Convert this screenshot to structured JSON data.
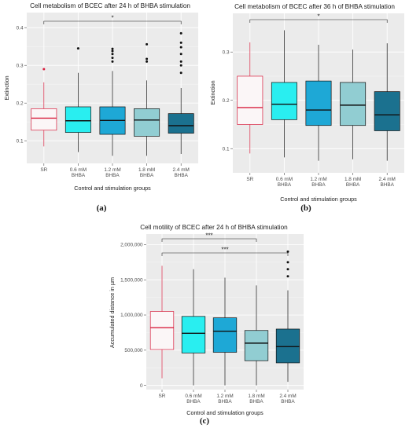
{
  "chart_data": [
    {
      "panel": "(a)",
      "type": "boxplot",
      "title": "Cell metabolism of BCEC after 24 h of BHBA stimulation",
      "xlabel": "Control and stimulation groups",
      "ylabel": "Extinction",
      "ylim": [
        0.04,
        0.44
      ],
      "yticks": [
        0.1,
        0.2,
        0.3,
        0.4
      ],
      "ytick_labels": [
        "0.1",
        "0.2",
        "0.3",
        "0.4"
      ],
      "categories": [
        [
          "SR"
        ],
        [
          "0.6 mM",
          "BHBA"
        ],
        [
          "1.2 mM",
          "BHBA"
        ],
        [
          "1.8 mM",
          "BHBA"
        ],
        [
          "2.4 mM",
          "BHBA"
        ]
      ],
      "fills": [
        "#fbf6f7",
        "#29eef0",
        "#1ea8d6",
        "#91cdd2",
        "#1b718f"
      ],
      "strokes": [
        "#d8203f",
        "#111111",
        "#111111",
        "#111111",
        "#111111"
      ],
      "boxes": [
        {
          "min": 0.085,
          "q1": 0.128,
          "median": 0.16,
          "q3": 0.185,
          "max": 0.255,
          "outliers": [
            0.29
          ]
        },
        {
          "min": 0.07,
          "q1": 0.122,
          "median": 0.153,
          "q3": 0.19,
          "max": 0.28,
          "outliers": [
            0.345
          ]
        },
        {
          "min": 0.06,
          "q1": 0.117,
          "median": 0.154,
          "q3": 0.19,
          "max": 0.285,
          "outliers": [
            0.31,
            0.32,
            0.33,
            0.338,
            0.344
          ]
        },
        {
          "min": 0.06,
          "q1": 0.112,
          "median": 0.155,
          "q3": 0.185,
          "max": 0.26,
          "outliers": [
            0.31,
            0.317,
            0.356
          ]
        },
        {
          "min": 0.065,
          "q1": 0.12,
          "median": 0.14,
          "q3": 0.172,
          "max": 0.24,
          "outliers": [
            0.28,
            0.3,
            0.31,
            0.33,
            0.348,
            0.36,
            0.385
          ]
        }
      ],
      "significance": [
        {
          "from": 0,
          "to": 4,
          "label": "*"
        }
      ]
    },
    {
      "panel": "(b)",
      "type": "boxplot",
      "title": "Cell metabolism of BCEC after 36 h of BHBA stimulation",
      "xlabel": "Control and stimulation groups",
      "ylabel": "Extinction",
      "ylim": [
        0.05,
        0.38
      ],
      "yticks": [
        0.1,
        0.2,
        0.3
      ],
      "ytick_labels": [
        "0.1",
        "0.2",
        "0.3"
      ],
      "categories": [
        [
          "SR"
        ],
        [
          "0.6 mM",
          "BHBA"
        ],
        [
          "1.2 mM",
          "BHBA"
        ],
        [
          "1.8 mM",
          "BHBA"
        ],
        [
          "2.4 mM",
          "BHBA"
        ]
      ],
      "fills": [
        "#fbf6f7",
        "#29eef0",
        "#1ea8d6",
        "#91cdd2",
        "#1b718f"
      ],
      "strokes": [
        "#d8203f",
        "#111111",
        "#111111",
        "#111111",
        "#111111"
      ],
      "boxes": [
        {
          "min": 0.09,
          "q1": 0.15,
          "median": 0.185,
          "q3": 0.25,
          "max": 0.32,
          "outliers": []
        },
        {
          "min": 0.082,
          "q1": 0.16,
          "median": 0.192,
          "q3": 0.237,
          "max": 0.345,
          "outliers": []
        },
        {
          "min": 0.075,
          "q1": 0.148,
          "median": 0.18,
          "q3": 0.24,
          "max": 0.315,
          "outliers": []
        },
        {
          "min": 0.078,
          "q1": 0.148,
          "median": 0.19,
          "q3": 0.237,
          "max": 0.305,
          "outliers": []
        },
        {
          "min": 0.075,
          "q1": 0.137,
          "median": 0.17,
          "q3": 0.218,
          "max": 0.318,
          "outliers": []
        }
      ],
      "significance": [
        {
          "from": 0,
          "to": 4,
          "label": "*"
        }
      ]
    },
    {
      "panel": "(c)",
      "type": "boxplot",
      "title": "Cell motility of BCEC after 24 h of BHBA stimulation",
      "xlabel": "Control and stimulation groups",
      "ylabel": "Accumulated distance in µm",
      "ylim": [
        -60000,
        2150000
      ],
      "yticks": [
        0,
        500000,
        1000000,
        1500000,
        2000000
      ],
      "ytick_labels": [
        "0",
        "500,000",
        "1,000,000",
        "1,500,000",
        "2,000,000"
      ],
      "categories": [
        [
          "SR"
        ],
        [
          "0.6 mM",
          "BHBA"
        ],
        [
          "1.2 mM",
          "BHBA"
        ],
        [
          "1.8 mM",
          "BHBA"
        ],
        [
          "2.4 mM",
          "BHBA"
        ]
      ],
      "fills": [
        "#fbf6f7",
        "#29eef0",
        "#1ea8d6",
        "#91cdd2",
        "#1b718f"
      ],
      "strokes": [
        "#d8203f",
        "#111111",
        "#111111",
        "#111111",
        "#111111"
      ],
      "boxes": [
        {
          "min": 100000,
          "q1": 510000,
          "median": 820000,
          "q3": 1050000,
          "max": 1700000,
          "outliers": []
        },
        {
          "min": 0,
          "q1": 460000,
          "median": 740000,
          "q3": 980000,
          "max": 1650000,
          "outliers": []
        },
        {
          "min": 0,
          "q1": 470000,
          "median": 770000,
          "q3": 960000,
          "max": 1530000,
          "outliers": []
        },
        {
          "min": 0,
          "q1": 350000,
          "median": 600000,
          "q3": 780000,
          "max": 1420000,
          "outliers": []
        },
        {
          "min": 50000,
          "q1": 320000,
          "median": 550000,
          "q3": 800000,
          "max": 1350000,
          "outliers": [
            1550000,
            1650000,
            1750000,
            1900000
          ]
        }
      ],
      "significance": [
        {
          "from": 0,
          "to": 3,
          "label": "***"
        },
        {
          "from": 0,
          "to": 4,
          "label": "***"
        }
      ]
    }
  ]
}
